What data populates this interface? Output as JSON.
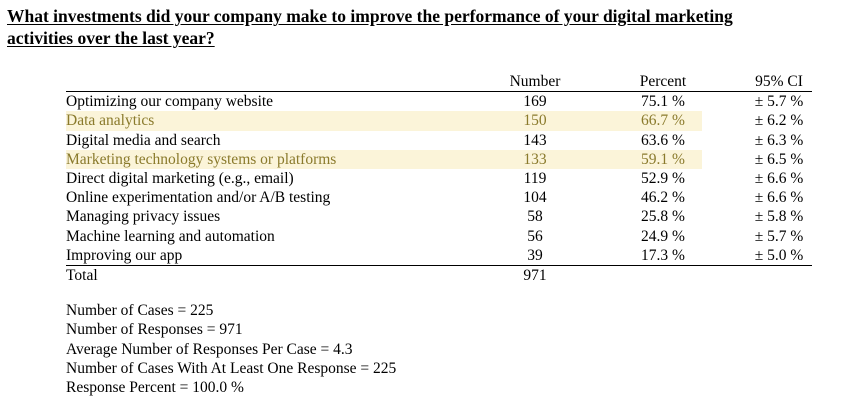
{
  "title": {
    "line1": "What investments did your company make to improve the performance of your digital marketing",
    "line2": "activities over the last year?"
  },
  "table": {
    "headers": {
      "number": "Number",
      "percent": "Percent",
      "ci": "95% CI"
    },
    "rows": [
      {
        "label": "Optimizing our company website",
        "number": "169",
        "percent": "75.1 %",
        "ci": "± 5.7 %",
        "highlight": false
      },
      {
        "label": "Data analytics",
        "number": "150",
        "percent": "66.7 %",
        "ci": "± 6.2 %",
        "highlight": true
      },
      {
        "label": "Digital media and search",
        "number": "143",
        "percent": "63.6 %",
        "ci": "± 6.3 %",
        "highlight": false
      },
      {
        "label": "Marketing technology systems or platforms",
        "number": "133",
        "percent": "59.1 %",
        "ci": "± 6.5 %",
        "highlight": true
      },
      {
        "label": "Direct digital marketing (e.g., email)",
        "number": "119",
        "percent": "52.9 %",
        "ci": "± 6.6 %",
        "highlight": false
      },
      {
        "label": "Online experimentation and/or A/B testing",
        "number": "104",
        "percent": "46.2 %",
        "ci": "± 6.6 %",
        "highlight": false
      },
      {
        "label": "Managing privacy issues",
        "number": "58",
        "percent": "25.8 %",
        "ci": "± 5.8 %",
        "highlight": false
      },
      {
        "label": "Machine learning and automation",
        "number": "56",
        "percent": "24.9 %",
        "ci": "± 5.7 %",
        "highlight": false
      },
      {
        "label": "Improving our app",
        "number": "39",
        "percent": "17.3 %",
        "ci": "± 5.0 %",
        "highlight": false
      }
    ],
    "total": {
      "label": "Total",
      "number": "971"
    }
  },
  "summary": {
    "cases": "Number of Cases = 225",
    "responses": "Number of Responses = 971",
    "avg": "Average Number of Responses Per Case = 4.3",
    "at_least_one": "Number of Cases With At Least One Response = 225",
    "response_percent": "Response Percent = 100.0 %"
  },
  "colors": {
    "highlight_band": "#fbf4d9",
    "highlight_text": "#8a7a2c"
  }
}
